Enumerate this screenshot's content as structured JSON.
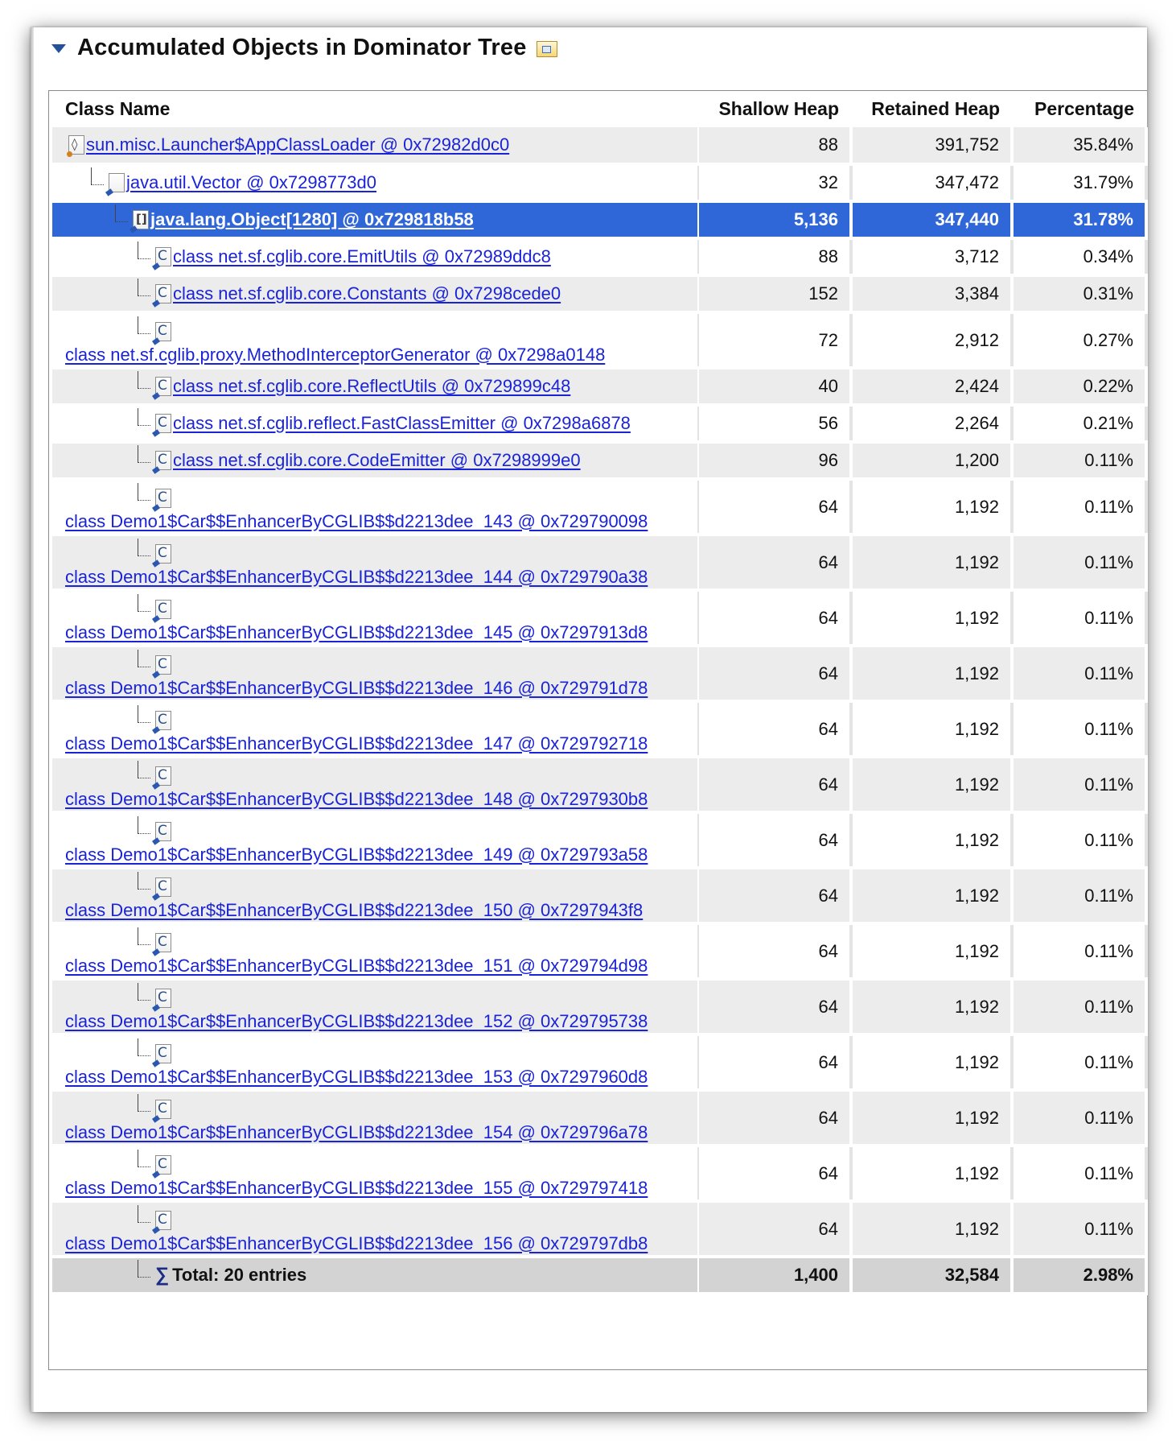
{
  "section": {
    "title": "Accumulated Objects in Dominator Tree",
    "export_icon": "export-icon"
  },
  "columns": {
    "class_name": "Class Name",
    "shallow_heap": "Shallow Heap",
    "retained_heap": "Retained Heap",
    "percentage": "Percentage"
  },
  "rows": [
    {
      "name": "sun.misc.Launcher$AppClassLoader @ 0x72982d0c0",
      "icon": "class-loader-icon",
      "depth": 0,
      "wrap": false,
      "shallow": "88",
      "retained": "391,752",
      "percent": "35.84%"
    },
    {
      "name": "java.util.Vector @ 0x7298773d0",
      "icon": "object-icon",
      "depth": 1,
      "wrap": false,
      "shallow": "32",
      "retained": "347,472",
      "percent": "31.79%"
    },
    {
      "name": "java.lang.Object[1280] @ 0x729818b58",
      "icon": "array-icon",
      "depth": 2,
      "wrap": false,
      "selected": true,
      "shallow": "5,136",
      "retained": "347,440",
      "percent": "31.78%"
    },
    {
      "name": "class net.sf.cglib.core.EmitUtils @ 0x72989ddc8",
      "icon": "class-icon",
      "depth": 3,
      "wrap": false,
      "shallow": "88",
      "retained": "3,712",
      "percent": "0.34%"
    },
    {
      "name": "class net.sf.cglib.core.Constants @ 0x7298cede0",
      "icon": "class-icon",
      "depth": 3,
      "wrap": false,
      "shallow": "152",
      "retained": "3,384",
      "percent": "0.31%"
    },
    {
      "name": "class net.sf.cglib.proxy.MethodInterceptorGenerator @ 0x7298a0148",
      "icon": "class-icon",
      "depth": 3,
      "wrap": true,
      "shallow": "72",
      "retained": "2,912",
      "percent": "0.27%"
    },
    {
      "name": "class net.sf.cglib.core.ReflectUtils @ 0x729899c48",
      "icon": "class-icon",
      "depth": 3,
      "wrap": false,
      "shallow": "40",
      "retained": "2,424",
      "percent": "0.22%"
    },
    {
      "name": "class net.sf.cglib.reflect.FastClassEmitter @ 0x7298a6878",
      "icon": "class-icon",
      "depth": 3,
      "wrap": false,
      "shallow": "56",
      "retained": "2,264",
      "percent": "0.21%"
    },
    {
      "name": "class net.sf.cglib.core.CodeEmitter @ 0x7298999e0",
      "icon": "class-icon",
      "depth": 3,
      "wrap": false,
      "shallow": "96",
      "retained": "1,200",
      "percent": "0.11%"
    },
    {
      "name": "class Demo1$Car$$EnhancerByCGLIB$$d2213dee_143 @ 0x729790098",
      "icon": "class-icon",
      "depth": 3,
      "wrap": true,
      "shallow": "64",
      "retained": "1,192",
      "percent": "0.11%"
    },
    {
      "name": "class Demo1$Car$$EnhancerByCGLIB$$d2213dee_144 @ 0x729790a38",
      "icon": "class-icon",
      "depth": 3,
      "wrap": true,
      "shallow": "64",
      "retained": "1,192",
      "percent": "0.11%"
    },
    {
      "name": "class Demo1$Car$$EnhancerByCGLIB$$d2213dee_145 @ 0x7297913d8",
      "icon": "class-icon",
      "depth": 3,
      "wrap": true,
      "shallow": "64",
      "retained": "1,192",
      "percent": "0.11%"
    },
    {
      "name": "class Demo1$Car$$EnhancerByCGLIB$$d2213dee_146 @ 0x729791d78",
      "icon": "class-icon",
      "depth": 3,
      "wrap": true,
      "shallow": "64",
      "retained": "1,192",
      "percent": "0.11%"
    },
    {
      "name": "class Demo1$Car$$EnhancerByCGLIB$$d2213dee_147 @ 0x729792718",
      "icon": "class-icon",
      "depth": 3,
      "wrap": true,
      "shallow": "64",
      "retained": "1,192",
      "percent": "0.11%"
    },
    {
      "name": "class Demo1$Car$$EnhancerByCGLIB$$d2213dee_148 @ 0x7297930b8",
      "icon": "class-icon",
      "depth": 3,
      "wrap": true,
      "shallow": "64",
      "retained": "1,192",
      "percent": "0.11%"
    },
    {
      "name": "class Demo1$Car$$EnhancerByCGLIB$$d2213dee_149 @ 0x729793a58",
      "icon": "class-icon",
      "depth": 3,
      "wrap": true,
      "shallow": "64",
      "retained": "1,192",
      "percent": "0.11%"
    },
    {
      "name": "class Demo1$Car$$EnhancerByCGLIB$$d2213dee_150 @ 0x7297943f8",
      "icon": "class-icon",
      "depth": 3,
      "wrap": true,
      "shallow": "64",
      "retained": "1,192",
      "percent": "0.11%"
    },
    {
      "name": "class Demo1$Car$$EnhancerByCGLIB$$d2213dee_151 @ 0x729794d98",
      "icon": "class-icon",
      "depth": 3,
      "wrap": true,
      "shallow": "64",
      "retained": "1,192",
      "percent": "0.11%"
    },
    {
      "name": "class Demo1$Car$$EnhancerByCGLIB$$d2213dee_152 @ 0x729795738",
      "icon": "class-icon",
      "depth": 3,
      "wrap": true,
      "shallow": "64",
      "retained": "1,192",
      "percent": "0.11%"
    },
    {
      "name": "class Demo1$Car$$EnhancerByCGLIB$$d2213dee_153 @ 0x7297960d8",
      "icon": "class-icon",
      "depth": 3,
      "wrap": true,
      "shallow": "64",
      "retained": "1,192",
      "percent": "0.11%"
    },
    {
      "name": "class Demo1$Car$$EnhancerByCGLIB$$d2213dee_154 @ 0x729796a78",
      "icon": "class-icon",
      "depth": 3,
      "wrap": true,
      "shallow": "64",
      "retained": "1,192",
      "percent": "0.11%"
    },
    {
      "name": "class Demo1$Car$$EnhancerByCGLIB$$d2213dee_155 @ 0x729797418",
      "icon": "class-icon",
      "depth": 3,
      "wrap": true,
      "shallow": "64",
      "retained": "1,192",
      "percent": "0.11%"
    },
    {
      "name": "class Demo1$Car$$EnhancerByCGLIB$$d2213dee_156 @ 0x729797db8",
      "icon": "class-icon",
      "depth": 3,
      "wrap": true,
      "shallow": "64",
      "retained": "1,192",
      "percent": "0.11%"
    }
  ],
  "total": {
    "label": "Total: 20 entries",
    "icon": "sigma-icon",
    "shallow": "1,400",
    "retained": "32,584",
    "percent": "2.98%"
  },
  "colors": {
    "selection": "#2f67d8",
    "link": "#1a24d6",
    "row_alt": "#ececec",
    "total_row": "#d3d3d3"
  }
}
